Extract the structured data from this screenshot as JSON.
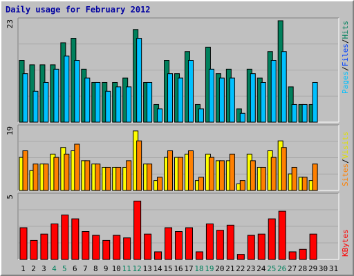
{
  "chart_data": [
    {
      "type": "bar",
      "title": "Daily usage for February 2012",
      "categories": [
        "1",
        "2",
        "3",
        "4",
        "5",
        "6",
        "7",
        "8",
        "9",
        "10",
        "11",
        "12",
        "13",
        "14",
        "15",
        "16",
        "17",
        "18",
        "19",
        "20",
        "21",
        "22",
        "23",
        "24",
        "25",
        "26",
        "27",
        "28",
        "29",
        "30",
        "31"
      ],
      "weekend_days": [
        "4",
        "5",
        "11",
        "12",
        "18",
        "19",
        "25",
        "26"
      ],
      "ylim": [
        0,
        23
      ],
      "ymax_label": "23",
      "legend": [
        "Pages",
        "Files",
        "Hits"
      ],
      "series": [
        {
          "name": "Hits",
          "color": "#00805c",
          "values": [
            14,
            13,
            13,
            13,
            18,
            19,
            12,
            9,
            9,
            9,
            10,
            21,
            9,
            4,
            14,
            11,
            16,
            4,
            17,
            11,
            12,
            3,
            12,
            10,
            16,
            23,
            8,
            4,
            4,
            0,
            0
          ]
        },
        {
          "name": "Files",
          "color": "#00c0ff",
          "values": [
            11,
            7,
            9,
            12,
            15,
            14,
            10,
            9,
            7,
            8,
            8,
            19,
            9,
            3,
            11,
            10,
            14,
            3,
            12,
            10,
            10,
            2,
            11,
            9,
            14,
            16,
            4,
            4,
            9,
            0,
            0
          ]
        },
        {
          "name": "Pages",
          "color": "#00c0ff",
          "values": [
            11,
            7,
            9,
            12,
            15,
            14,
            10,
            9,
            7,
            8,
            8,
            19,
            9,
            3,
            11,
            10,
            14,
            3,
            12,
            10,
            10,
            2,
            11,
            9,
            14,
            16,
            4,
            4,
            9,
            0,
            0
          ]
        }
      ]
    },
    {
      "type": "bar",
      "ylim": [
        0,
        19
      ],
      "ymax_label": "19",
      "legend": [
        "Sites",
        "Visits"
      ],
      "series": [
        {
          "name": "Visits",
          "color": "#ffff00",
          "values": [
            10,
            6,
            8,
            11,
            13,
            12,
            9,
            8,
            7,
            7,
            7,
            18,
            8,
            3,
            10,
            10,
            11,
            3,
            11,
            9,
            9,
            2,
            11,
            7,
            12,
            15,
            5,
            4,
            3,
            0,
            0
          ]
        },
        {
          "name": "Sites",
          "color": "#ff8000",
          "values": [
            12,
            8,
            8,
            10,
            11,
            14,
            9,
            8,
            7,
            7,
            9,
            15,
            8,
            4,
            12,
            10,
            12,
            4,
            10,
            9,
            11,
            3,
            9,
            7,
            10,
            13,
            7,
            4,
            8,
            0,
            0
          ]
        }
      ]
    },
    {
      "type": "bar",
      "ylim": [
        0,
        5
      ],
      "ymax_label": "5",
      "legend": [
        "KBytes"
      ],
      "series": [
        {
          "name": "KBytes",
          "color": "#ff0000",
          "values": [
            2.5,
            1.5,
            2,
            2.8,
            3.5,
            3.2,
            2.2,
            1.9,
            1.5,
            1.9,
            1.7,
            4.6,
            2,
            0.6,
            2.5,
            2.2,
            2.5,
            0.6,
            2.8,
            2.3,
            2.7,
            0.4,
            1.9,
            2,
            3.2,
            3.8,
            0.6,
            0.8,
            2,
            0,
            0
          ]
        }
      ]
    }
  ],
  "colors": {
    "weekday_label": "#000000",
    "weekend_label": "#00805c",
    "pages_label": "#00c0ff",
    "files_label": "#0040ff",
    "hits_label": "#00805c",
    "sites_label": "#ff8000",
    "visits_label": "#e0e000",
    "kbytes_label": "#ff0000"
  }
}
